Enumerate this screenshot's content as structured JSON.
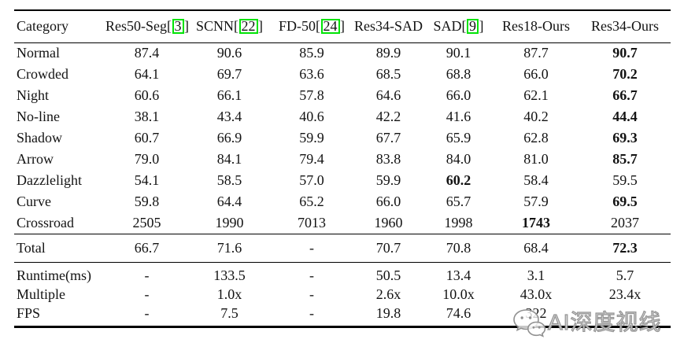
{
  "table": {
    "columns": [
      {
        "label": "Category"
      },
      {
        "pre": "Res50-Seg[",
        "cite": "3",
        "post": "]"
      },
      {
        "pre": "SCNN[",
        "cite": "22",
        "post": "]"
      },
      {
        "pre": "FD-50[",
        "cite": "24",
        "post": "]"
      },
      {
        "label": "Res34-SAD"
      },
      {
        "pre": "SAD[",
        "cite": "9",
        "post": "]"
      },
      {
        "label": "Res18-Ours"
      },
      {
        "label": "Res34-Ours"
      }
    ],
    "category_rows": [
      {
        "label": "Normal",
        "values": [
          "87.4",
          "90.6",
          "85.9",
          "89.9",
          "90.1",
          "87.7",
          "90.7"
        ],
        "bold": [
          6
        ]
      },
      {
        "label": "Crowded",
        "values": [
          "64.1",
          "69.7",
          "63.6",
          "68.5",
          "68.8",
          "66.0",
          "70.2"
        ],
        "bold": [
          6
        ]
      },
      {
        "label": "Night",
        "values": [
          "60.6",
          "66.1",
          "57.8",
          "64.6",
          "66.0",
          "62.1",
          "66.7"
        ],
        "bold": [
          6
        ]
      },
      {
        "label": "No-line",
        "values": [
          "38.1",
          "43.4",
          "40.6",
          "42.2",
          "41.6",
          "40.2",
          "44.4"
        ],
        "bold": [
          6
        ]
      },
      {
        "label": "Shadow",
        "values": [
          "60.7",
          "66.9",
          "59.9",
          "67.7",
          "65.9",
          "62.8",
          "69.3"
        ],
        "bold": [
          6
        ]
      },
      {
        "label": "Arrow",
        "values": [
          "79.0",
          "84.1",
          "79.4",
          "83.8",
          "84.0",
          "81.0",
          "85.7"
        ],
        "bold": [
          6
        ]
      },
      {
        "label": "Dazzlelight",
        "values": [
          "54.1",
          "58.5",
          "57.0",
          "59.9",
          "60.2",
          "58.4",
          "59.5"
        ],
        "bold": [
          4
        ]
      },
      {
        "label": "Curve",
        "values": [
          "59.8",
          "64.4",
          "65.2",
          "66.0",
          "65.7",
          "57.9",
          "69.5"
        ],
        "bold": [
          6
        ]
      },
      {
        "label": "Crossroad",
        "values": [
          "2505",
          "1990",
          "7013",
          "1960",
          "1998",
          "1743",
          "2037"
        ],
        "bold": [
          5
        ]
      }
    ],
    "total_row": {
      "label": "Total",
      "values": [
        "66.7",
        "71.6",
        "-",
        "70.7",
        "70.8",
        "68.4",
        "72.3"
      ],
      "bold": [
        6
      ]
    },
    "perf_rows": [
      {
        "label": "Runtime(ms)",
        "values": [
          "-",
          "133.5",
          "-",
          "50.5",
          "13.4",
          "3.1",
          "5.7"
        ],
        "bold": []
      },
      {
        "label": "Multiple",
        "values": [
          "-",
          "1.0x",
          "-",
          "2.6x",
          "10.0x",
          "43.0x",
          "23.4x"
        ],
        "bold": []
      },
      {
        "label": "FPS",
        "values": [
          "-",
          "7.5",
          "-",
          "19.8",
          "74.6",
          "322",
          ""
        ],
        "bold": []
      }
    ]
  },
  "watermark": {
    "text": "AI深度视线",
    "icon": "wechat-icon"
  },
  "colors": {
    "cite_box": "#00e306",
    "rule": "#000000",
    "watermark_gray": "#909090",
    "background": "#ffffff"
  }
}
